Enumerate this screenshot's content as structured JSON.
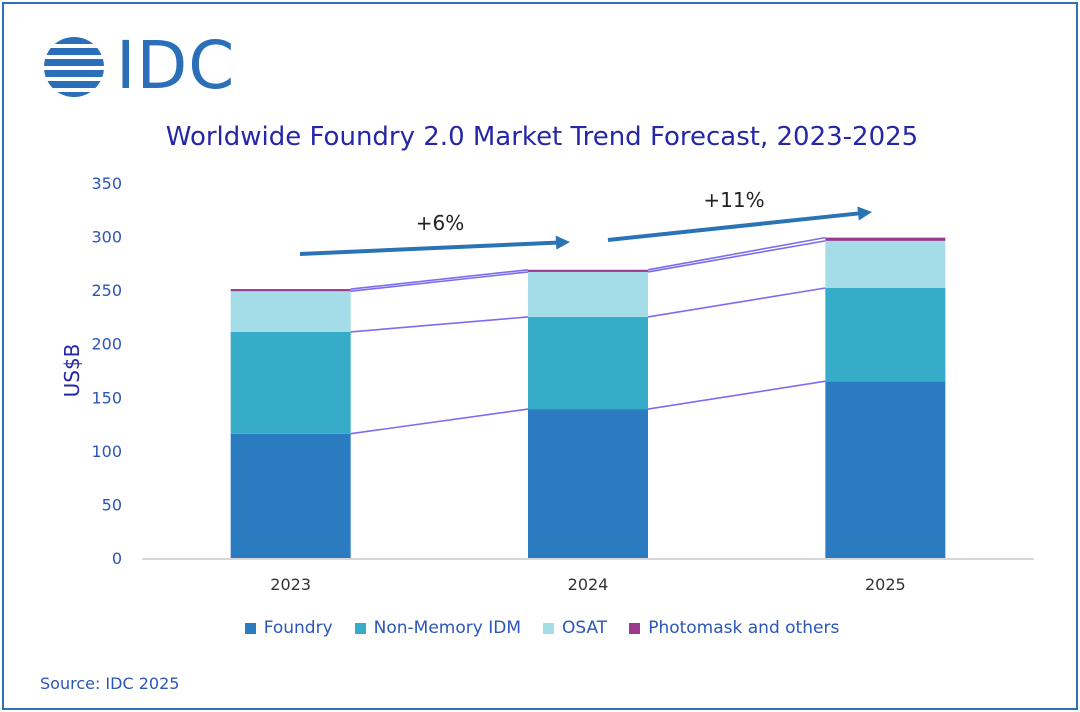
{
  "logo": {
    "text": "IDC",
    "color": "#2a6fb8"
  },
  "source": "Source: IDC 2025",
  "chart_data": {
    "type": "bar",
    "stacked": true,
    "title": "Worldwide Foundry 2.0 Market Trend Forecast, 2023-2025",
    "xlabel": "",
    "ylabel": "US$B",
    "ylim": [
      0,
      350
    ],
    "yticks": [
      "0",
      "50",
      "100",
      "150",
      "200",
      "250",
      "300",
      "350"
    ],
    "grid": false,
    "legend_position": "bottom",
    "categories": [
      "2023",
      "2024",
      "2025"
    ],
    "series": [
      {
        "name": "Foundry",
        "color": "#2a7bc0",
        "values": [
          116,
          139,
          165
        ]
      },
      {
        "name": "Non-Memory IDM",
        "color": "#36acc8",
        "values": [
          95,
          86,
          87
        ]
      },
      {
        "name": "OSAT",
        "color": "#a4dce8",
        "values": [
          38,
          42,
          44
        ]
      },
      {
        "name": "Photomask and others",
        "color": "#9a3a8e",
        "values": [
          2,
          2,
          3
        ]
      }
    ],
    "annotations": [
      {
        "text": "+6%",
        "from": "2023",
        "to": "2024"
      },
      {
        "text": "+11%",
        "from": "2024",
        "to": "2025"
      }
    ]
  }
}
